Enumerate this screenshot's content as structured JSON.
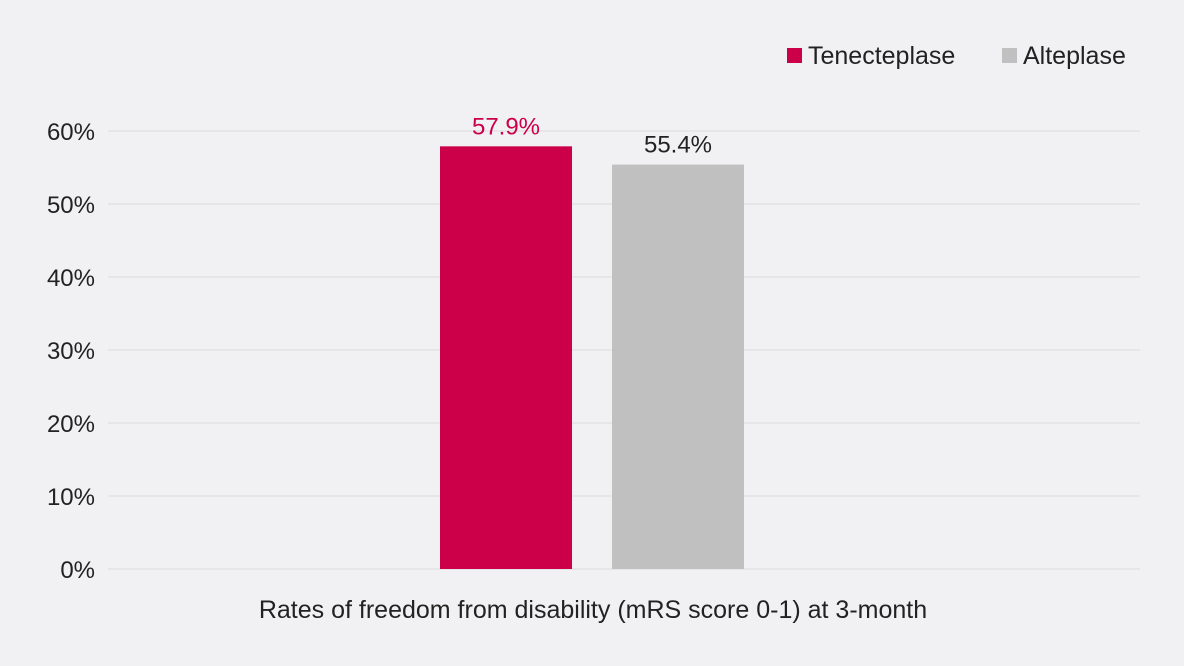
{
  "chart_data": {
    "type": "bar",
    "categories": [
      "Rates of freedom from disability (mRS score 0-1) at 3-month"
    ],
    "xlabel": "Rates of freedom from disability (mRS score 0-1) at 3-month",
    "ylabel": "",
    "ylim": [
      0,
      60
    ],
    "yticks": [
      0,
      10,
      20,
      30,
      40,
      50,
      60
    ],
    "ytick_labels": [
      "0%",
      "10%",
      "20%",
      "30%",
      "40%",
      "50%",
      "60%"
    ],
    "grid": true,
    "legend_position": "top-right",
    "series": [
      {
        "name": "Tenecteplase",
        "values": [
          57.9
        ],
        "label": "57.9%",
        "color": "#cc0048",
        "label_color": "#cc0048"
      },
      {
        "name": "Alteplase",
        "values": [
          55.4
        ],
        "label": "55.4%",
        "color": "#c0c0c0",
        "label_color": "#222222"
      }
    ]
  }
}
